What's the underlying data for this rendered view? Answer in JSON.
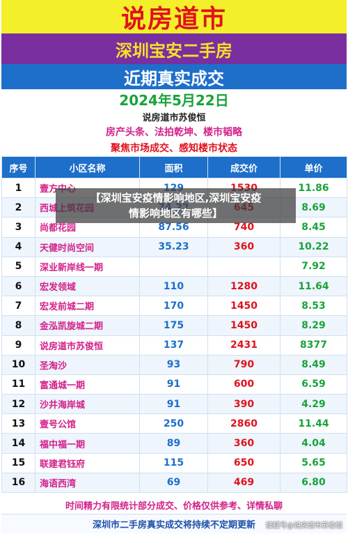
{
  "header": {
    "brand": "说房道市",
    "subtitle": "深圳宝安二手房",
    "section": "近期真实成交",
    "date": "2024年5月22日",
    "author": "说房道市苏俊恒",
    "tagline1": "房产头条、法拍乾坤、楼市韬略",
    "tagline2": "聚焦市场成交、感知楼市状态"
  },
  "table": {
    "headers": [
      "序号",
      "小区名称",
      "面积",
      "成交价",
      "单价"
    ],
    "rows": [
      {
        "idx": "1",
        "name": "壹方中心",
        "area": "129",
        "price": "1530",
        "unit": "11.86"
      },
      {
        "idx": "2",
        "name": "西城上筑花园",
        "area": "74.22",
        "price": "645",
        "unit": "8.69"
      },
      {
        "idx": "3",
        "name": "尚都花园",
        "area": "87.56",
        "price": "740",
        "unit": "8.45"
      },
      {
        "idx": "4",
        "name": "天健时尚空间",
        "area": "35.23",
        "price": "360",
        "unit": "10.22"
      },
      {
        "idx": "5",
        "name": "深业新岸线一期",
        "area": "",
        "price": "",
        "unit": "7.92"
      },
      {
        "idx": "6",
        "name": "宏发领域",
        "area": "110",
        "price": "1280",
        "unit": "11.64"
      },
      {
        "idx": "7",
        "name": "宏发前城二期",
        "area": "170",
        "price": "1450",
        "unit": "8.53"
      },
      {
        "idx": "8",
        "name": "金泓凯旋城二期",
        "area": "175",
        "price": "1450",
        "unit": "8.29"
      },
      {
        "idx": "9",
        "name": "说房道市苏俊恒",
        "area": "137",
        "price": "2431",
        "unit": "8377"
      },
      {
        "idx": "10",
        "name": "圣淘沙",
        "area": "93",
        "price": "790",
        "unit": "8.49"
      },
      {
        "idx": "11",
        "name": "富通城一期",
        "area": "91",
        "price": "600",
        "unit": "6.59"
      },
      {
        "idx": "12",
        "name": "沙井海岸城",
        "area": "91",
        "price": "390",
        "unit": "4.29"
      },
      {
        "idx": "13",
        "name": "壹号公馆",
        "area": "250",
        "price": "2860",
        "unit": "11.44"
      },
      {
        "idx": "14",
        "name": "福中福一期",
        "area": "89",
        "price": "360",
        "unit": "4.04"
      },
      {
        "idx": "15",
        "name": "联建君钰府",
        "area": "115",
        "price": "650",
        "unit": "5.65"
      },
      {
        "idx": "16",
        "name": "海语西湾",
        "area": "69",
        "price": "469",
        "unit": "6.80"
      }
    ]
  },
  "footer": {
    "note": "时间精力有限统计部分成交、价格仅供参考、详情私聊",
    "update": "深圳市二手房真实成交将持续不定期更新"
  },
  "overlay": {
    "line1": "【深圳宝安疫情影响地区,深圳宝安疫",
    "line2": "情影响地区有哪些】"
  },
  "watermark": "搜狐号@说房道市苏俊恒"
}
